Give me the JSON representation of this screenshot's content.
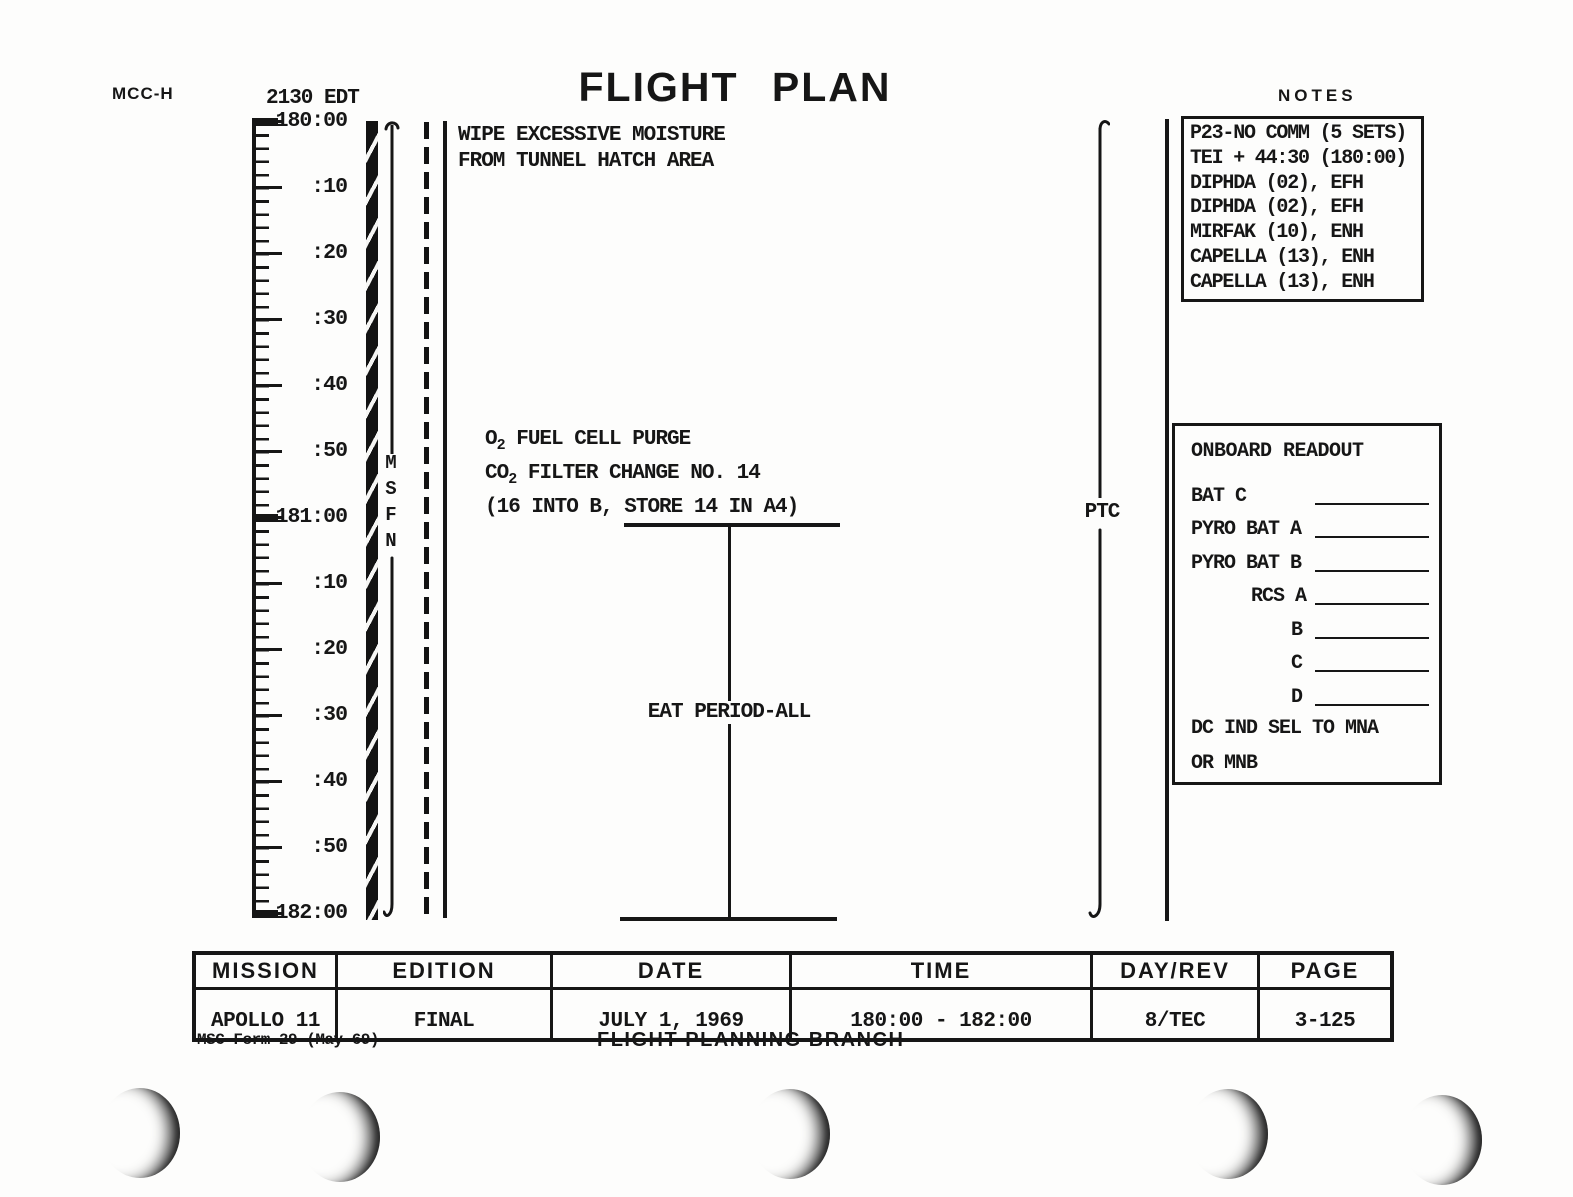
{
  "colors": {
    "ink": "#161616",
    "paper": "#fdfdfc"
  },
  "header": {
    "stamp": "MCC-H",
    "edt_time": "2130 EDT",
    "title": "FLIGHT PLAN",
    "notes_heading": "NOTES"
  },
  "timeline": {
    "start": "180:00",
    "end": "182:00",
    "minor_tick_minutes": 2,
    "label_interval_minutes": 10,
    "labels": [
      "180:00",
      ":10",
      ":20",
      ":30",
      ":40",
      ":50",
      "181:00",
      ":10",
      ":20",
      ":30",
      ":40",
      ":50",
      "182:00"
    ],
    "msfn_label": "MSFN",
    "ptc_label": "PTC"
  },
  "activities": {
    "wipe_line1": "WIPE EXCESSIVE MOISTURE",
    "wipe_line2": "FROM TUNNEL HATCH AREA",
    "o2_prefix": "O",
    "o2_sub": "2",
    "o2_rest": " FUEL CELL PURGE",
    "co2_prefix": "CO",
    "co2_sub": "2",
    "co2_rest": " FILTER CHANGE NO. 14",
    "store_prefix": "(16 INTO B, ",
    "store_underlined": "STORE 14 IN A4)",
    "eat_period": "EAT PERIOD-ALL"
  },
  "notes_box": {
    "lines": [
      "P23-NO COMM (5 SETS)",
      "TEI + 44:30 (180:00)",
      "DIPHDA (02), EFH",
      "DIPHDA (02), EFH",
      "MIRFAK (10), ENH",
      "CAPELLA (13), ENH",
      "CAPELLA (13), ENH"
    ]
  },
  "onboard_readout": {
    "title": "ONBOARD READOUT",
    "rows": [
      {
        "label": "BAT C",
        "indent": "0"
      },
      {
        "label": "PYRO BAT A",
        "indent": "0"
      },
      {
        "label": "PYRO BAT B",
        "indent": "0"
      },
      {
        "label": "RCS A",
        "indent": "1"
      },
      {
        "label": "B",
        "indent": "2"
      },
      {
        "label": "C",
        "indent": "2"
      },
      {
        "label": "D",
        "indent": "2"
      }
    ],
    "footer_lines": [
      "DC IND SEL TO MNA",
      "OR MNB"
    ]
  },
  "footer_table": {
    "columns": [
      {
        "header": "MISSION",
        "value": "APOLLO 11"
      },
      {
        "header": "EDITION",
        "value": "FINAL"
      },
      {
        "header": "DATE",
        "value": "JULY 1, 1969"
      },
      {
        "header": "TIME",
        "value": "180:00 - 182:00"
      },
      {
        "header": "DAY/REV",
        "value": "8/TEC"
      },
      {
        "header": "PAGE",
        "value": "3-125"
      }
    ],
    "form_number": "MSC Form 29 (May 69)",
    "branch": "FLIGHT PLANNING BRANCH"
  }
}
